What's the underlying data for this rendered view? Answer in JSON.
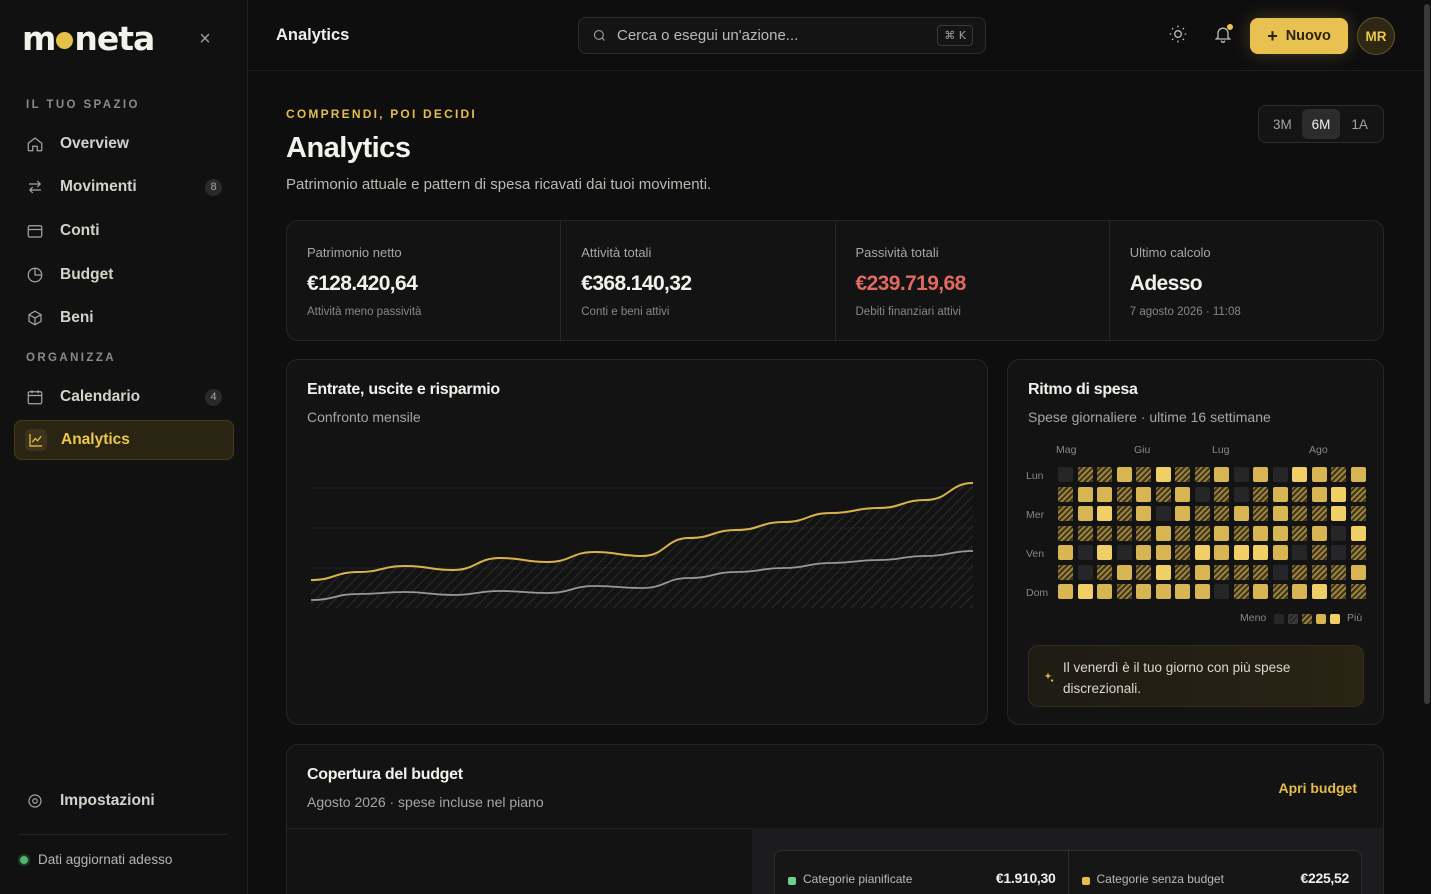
{
  "brand": {
    "name_start": "m",
    "name_end": "neta"
  },
  "sidebar": {
    "sections": [
      {
        "label": "IL TUO SPAZIO"
      },
      {
        "label": "ORGANIZZA"
      }
    ],
    "items": [
      {
        "label": "Overview",
        "icon": "home-icon"
      },
      {
        "label": "Movimenti",
        "icon": "arrows-icon",
        "badge": "8"
      },
      {
        "label": "Conti",
        "icon": "wallet-icon"
      },
      {
        "label": "Budget",
        "icon": "pie-icon"
      },
      {
        "label": "Beni",
        "icon": "box-icon"
      },
      {
        "label": "Calendario",
        "icon": "calendar-icon",
        "badge": "4"
      },
      {
        "label": "Analytics",
        "icon": "chart-icon",
        "active": true
      }
    ],
    "settings_label": "Impostazioni",
    "status_text": "Dati aggiornati adesso"
  },
  "topbar": {
    "title": "Analytics",
    "search_placeholder": "Cerca o esegui un'azione...",
    "search_shortcut": "⌘ K",
    "new_button": "Nuovo",
    "avatar_initials": "MR"
  },
  "page": {
    "eyebrow": "COMPRENDI, POI DECIDI",
    "title": "Analytics",
    "subtitle": "Patrimonio attuale e pattern di spesa ricavati dai tuoi movimenti.",
    "range_options": [
      "3M",
      "6M",
      "1A"
    ],
    "range_selected": "6M"
  },
  "stats": [
    {
      "label": "Patrimonio netto",
      "value": "€128.420,64",
      "note": "Attività meno passività"
    },
    {
      "label": "Attività totali",
      "value": "€368.140,32",
      "note": "Conti e beni attivi"
    },
    {
      "label": "Passività totali",
      "value": "€239.719,68",
      "note": "Debiti finanziari attivi",
      "negative": true
    },
    {
      "label": "Ultimo calcolo",
      "value": "Adesso",
      "note": "7 agosto 2026 · 11:08"
    }
  ],
  "income_chart": {
    "title": "Entrate, uscite e risparmio",
    "subtitle": "Confronto mensile",
    "colors": {
      "income": "#d9b24a",
      "expenses": "#9a9893"
    },
    "income": [
      0.28,
      0.36,
      0.42,
      0.38,
      0.5,
      0.46,
      0.56,
      0.52,
      0.7,
      0.78,
      0.86,
      0.95,
      1.0,
      1.08,
      1.25
    ],
    "expenses": [
      0.08,
      0.14,
      0.16,
      0.13,
      0.17,
      0.15,
      0.22,
      0.2,
      0.3,
      0.36,
      0.4,
      0.45,
      0.48,
      0.52,
      0.57
    ]
  },
  "heatmap": {
    "title": "Ritmo di spesa",
    "subtitle": "Spese giornaliere · ultime 16 settimane",
    "months": [
      "Mag",
      "Giu",
      "Lug",
      "Ago"
    ],
    "days": [
      "Lun",
      "Mer",
      "Ven",
      "Dom"
    ],
    "legend_less": "Meno",
    "legend_more": "Più",
    "levels": [
      [
        0,
        2,
        2,
        3,
        2,
        4,
        2,
        2,
        3,
        0,
        3,
        0,
        4,
        3,
        2,
        3
      ],
      [
        2,
        3,
        3,
        2,
        3,
        2,
        3,
        0,
        2,
        0,
        2,
        3,
        2,
        3,
        4,
        2
      ],
      [
        2,
        3,
        4,
        2,
        3,
        0,
        3,
        2,
        2,
        3,
        2,
        3,
        2,
        2,
        4,
        2
      ],
      [
        2,
        2,
        2,
        2,
        2,
        3,
        2,
        2,
        3,
        2,
        3,
        3,
        2,
        3,
        0,
        4
      ],
      [
        3,
        0,
        4,
        0,
        3,
        3,
        2,
        4,
        3,
        4,
        4,
        3,
        0,
        2,
        0,
        2
      ],
      [
        2,
        0,
        2,
        3,
        2,
        4,
        2,
        3,
        2,
        2,
        2,
        0,
        2,
        2,
        2,
        3
      ],
      [
        3,
        4,
        3,
        2,
        3,
        3,
        3,
        3,
        0,
        2,
        3,
        2,
        3,
        4,
        2,
        2
      ]
    ],
    "insight": "Il venerdì è il tuo giorno con più spese discrezionali."
  },
  "budget": {
    "title": "Copertura del budget",
    "subtitle": "Agosto 2026 · spese incluse nel piano",
    "link": "Apri budget",
    "planned_label": "Categorie pianificate",
    "planned_value": "€1.910,30",
    "planned_color": "#6fcf8f",
    "unplanned_label": "Categorie senza budget",
    "unplanned_value": "€225,52",
    "unplanned_color": "#e6bd49"
  }
}
